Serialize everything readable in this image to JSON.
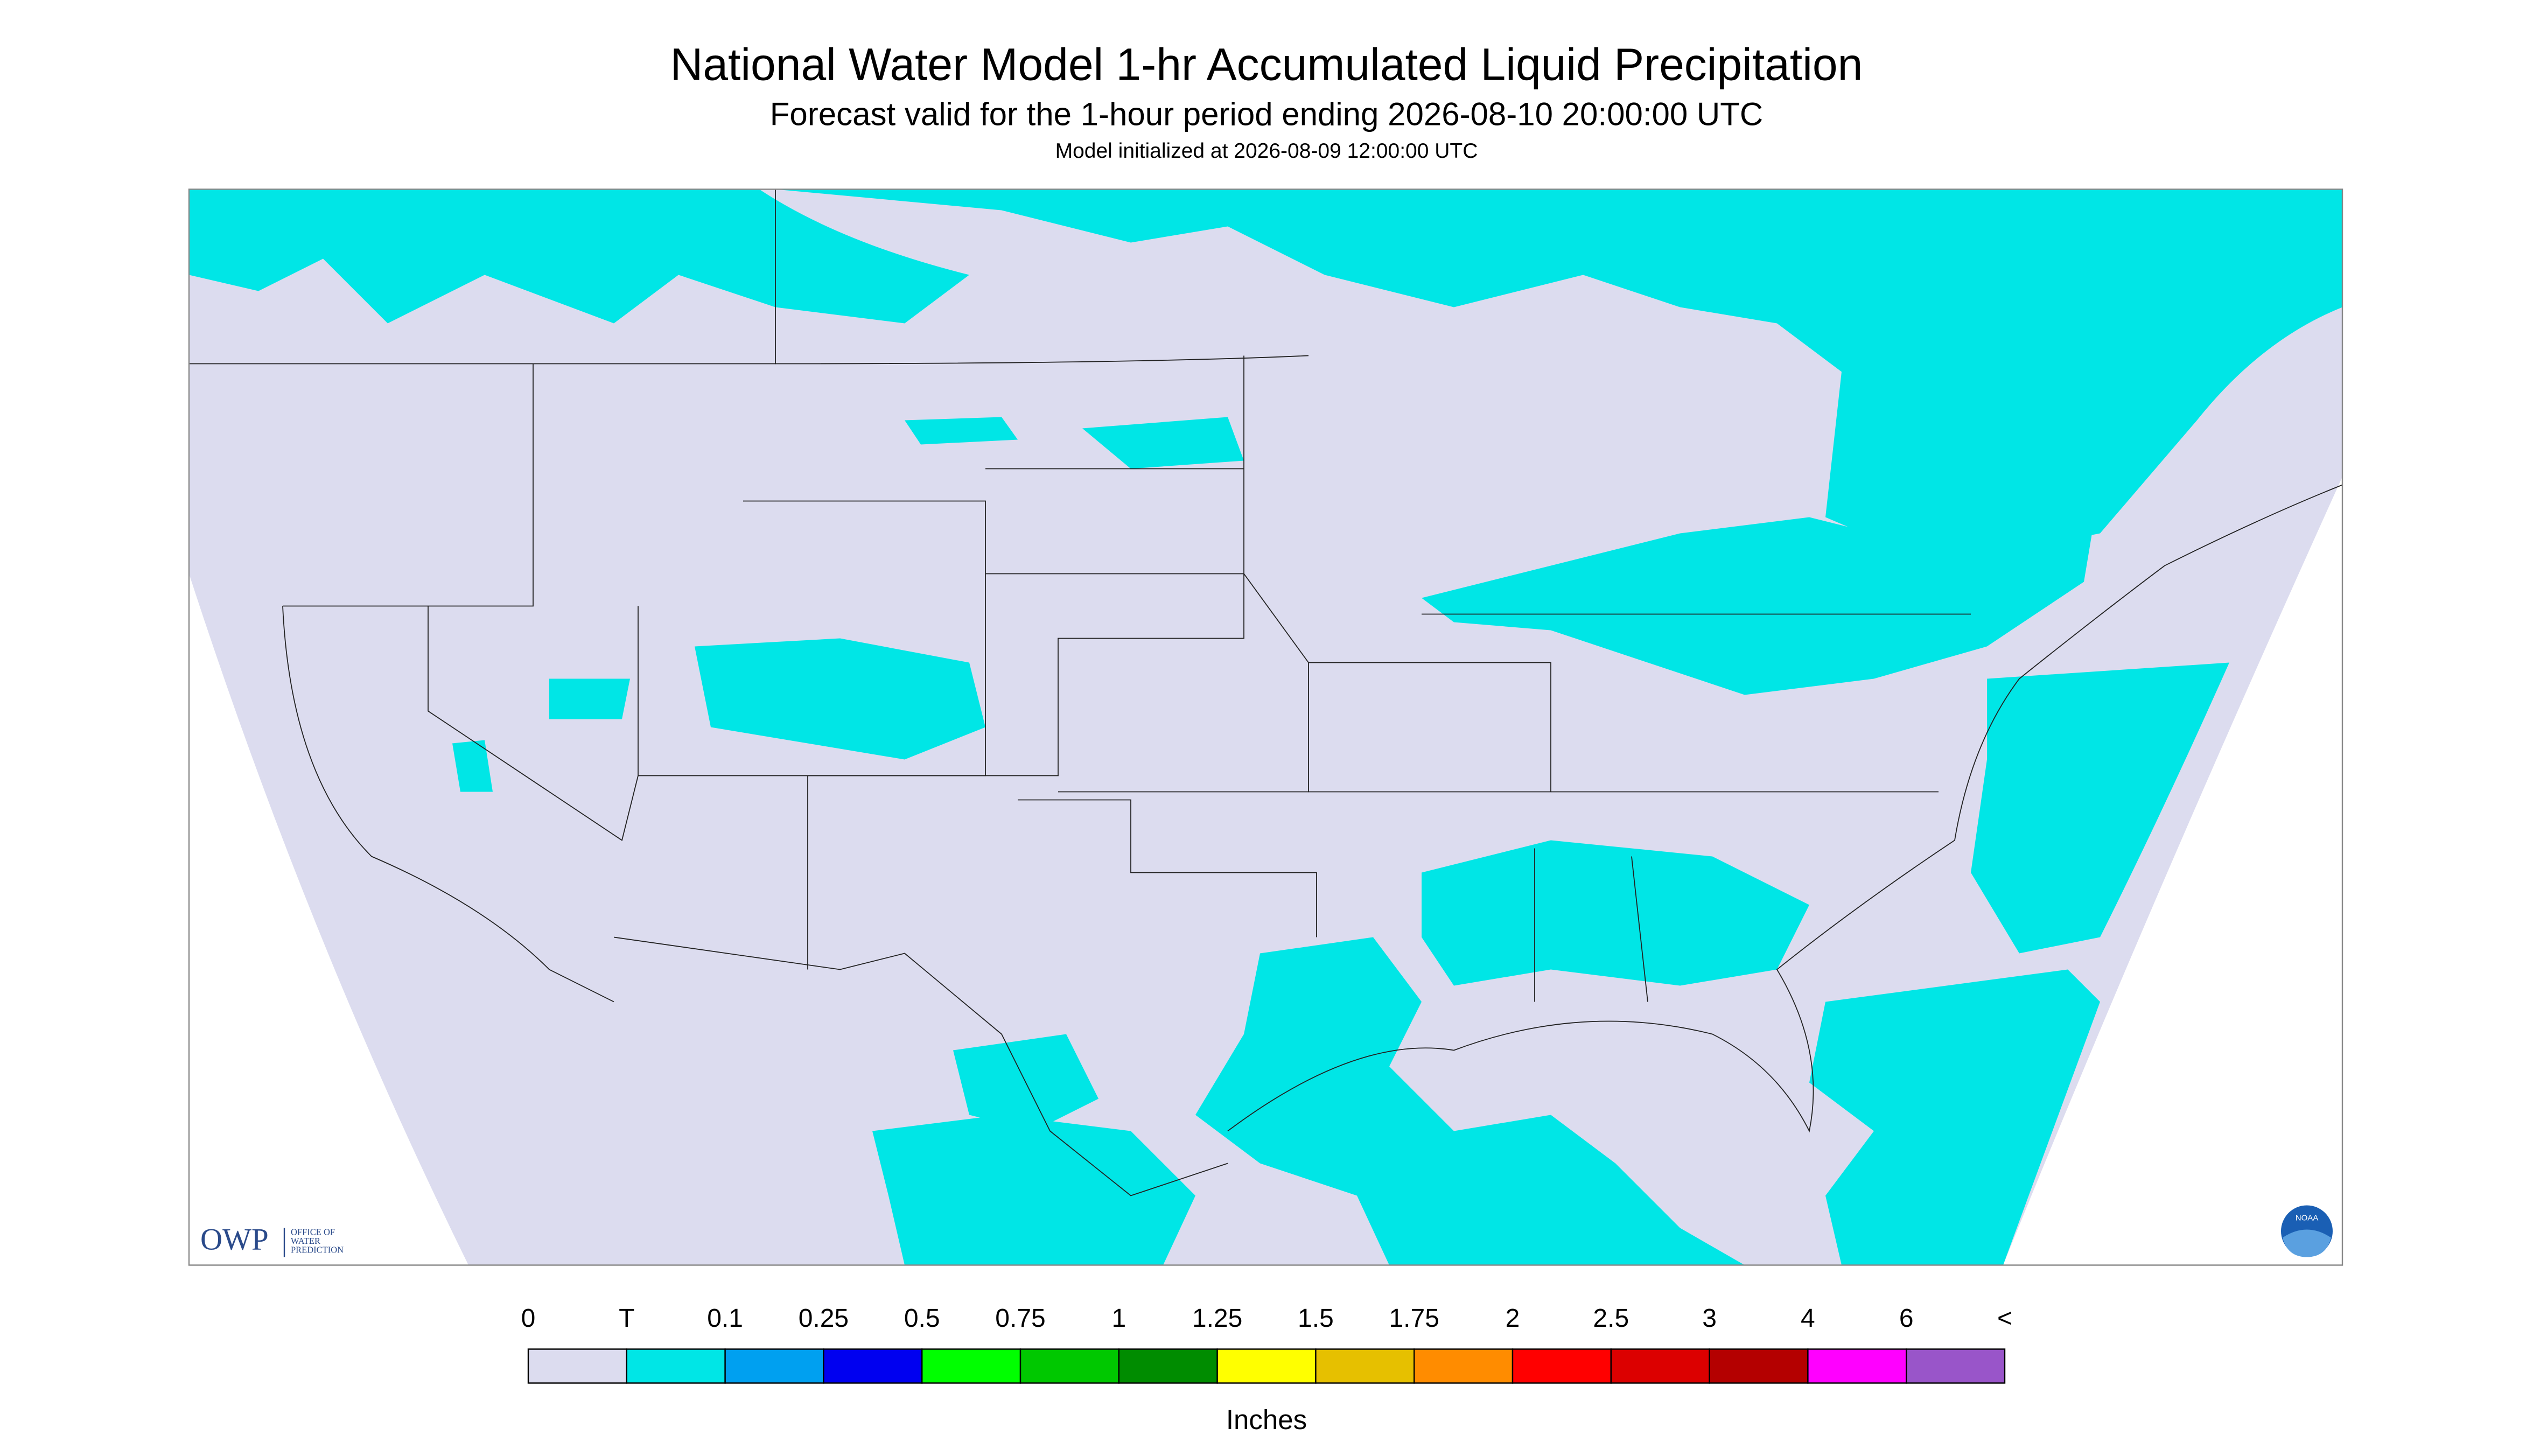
{
  "header": {
    "title": "National Water Model 1-hr Accumulated Liquid Precipitation",
    "subtitle": "Forecast valid for the 1-hour period ending 2026-08-10 20:00:00 UTC",
    "init": "Model initialized at 2026-08-09 12:00:00 UTC"
  },
  "logos": {
    "owp": "OWP",
    "owp_name": [
      "OFFICE OF",
      "WATER",
      "PREDICTION"
    ],
    "noaa": "NOAA"
  },
  "legend": {
    "labels": [
      "0",
      "T",
      "0.1",
      "0.25",
      "0.5",
      "0.75",
      "1",
      "1.25",
      "1.5",
      "1.75",
      "2",
      "2.5",
      "3",
      "4",
      "6",
      "<"
    ],
    "colors": [
      "#dcdcef",
      "#00e6e6",
      "#00a0f0",
      "#0000f0",
      "#00ff00",
      "#00c800",
      "#008c00",
      "#ffff00",
      "#e6c000",
      "#ff8c00",
      "#ff0000",
      "#dc0000",
      "#b40000",
      "#ff00ff",
      "#9955c9"
    ],
    "unit": "Inches"
  }
}
